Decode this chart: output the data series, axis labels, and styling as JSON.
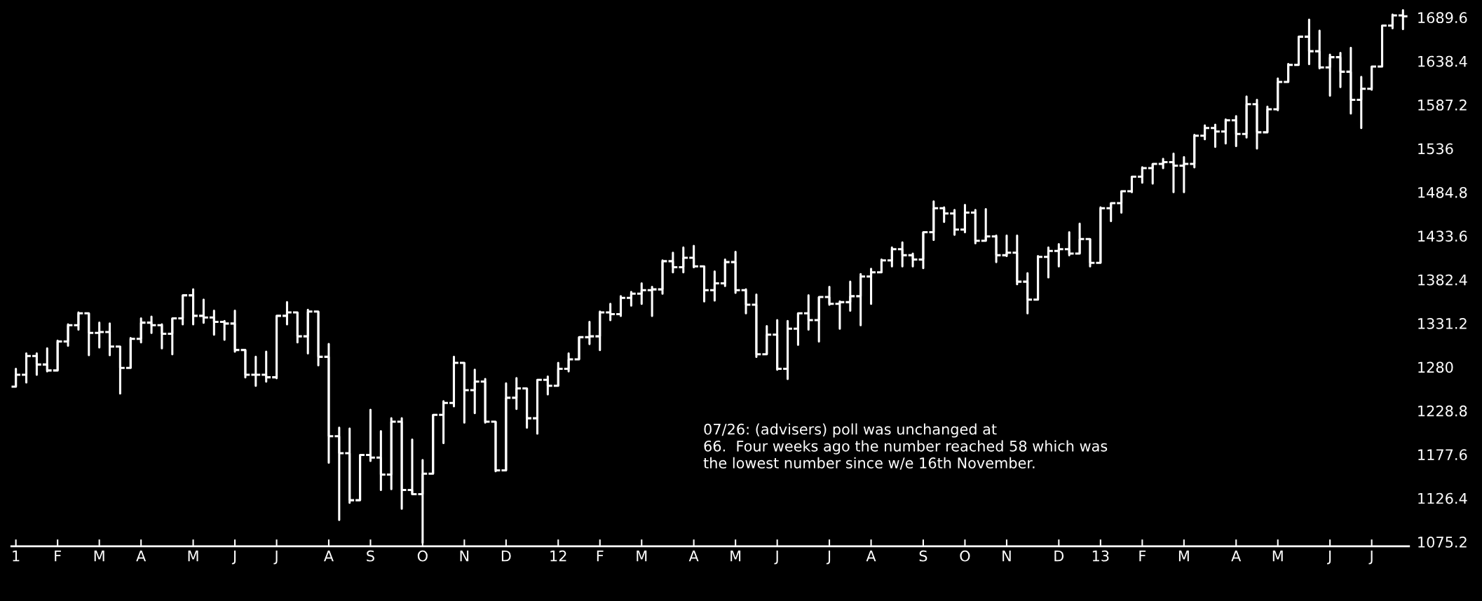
{
  "chart_data": {
    "type": "candlestick",
    "x": [
      "2011-01-07",
      "2011-01-14",
      "2011-01-21",
      "2011-01-28",
      "2011-02-04",
      "2011-02-11",
      "2011-02-18",
      "2011-02-25",
      "2011-03-04",
      "2011-03-11",
      "2011-03-18",
      "2011-03-25",
      "2011-04-01",
      "2011-04-08",
      "2011-04-15",
      "2011-04-22",
      "2011-04-29",
      "2011-05-06",
      "2011-05-13",
      "2011-05-20",
      "2011-05-27",
      "2011-06-03",
      "2011-06-10",
      "2011-06-17",
      "2011-06-24",
      "2011-07-01",
      "2011-07-08",
      "2011-07-15",
      "2011-07-22",
      "2011-07-29",
      "2011-08-05",
      "2011-08-12",
      "2011-08-19",
      "2011-08-26",
      "2011-09-02",
      "2011-09-09",
      "2011-09-16",
      "2011-09-23",
      "2011-09-30",
      "2011-10-07",
      "2011-10-14",
      "2011-10-21",
      "2011-10-28",
      "2011-11-04",
      "2011-11-11",
      "2011-11-18",
      "2011-11-25",
      "2011-12-02",
      "2011-12-09",
      "2011-12-16",
      "2011-12-23",
      "2011-12-30",
      "2012-01-06",
      "2012-01-13",
      "2012-01-20",
      "2012-01-27",
      "2012-02-03",
      "2012-02-10",
      "2012-02-17",
      "2012-02-24",
      "2012-03-02",
      "2012-03-09",
      "2012-03-16",
      "2012-03-23",
      "2012-03-30",
      "2012-04-06",
      "2012-04-13",
      "2012-04-20",
      "2012-04-27",
      "2012-05-04",
      "2012-05-11",
      "2012-05-18",
      "2012-05-25",
      "2012-06-01",
      "2012-06-08",
      "2012-06-15",
      "2012-06-22",
      "2012-06-29",
      "2012-07-06",
      "2012-07-13",
      "2012-07-20",
      "2012-07-27",
      "2012-08-03",
      "2012-08-10",
      "2012-08-17",
      "2012-08-24",
      "2012-08-31",
      "2012-09-07",
      "2012-09-14",
      "2012-09-21",
      "2012-09-28",
      "2012-10-05",
      "2012-10-12",
      "2012-10-19",
      "2012-10-26",
      "2012-11-02",
      "2012-11-09",
      "2012-11-16",
      "2012-11-23",
      "2012-11-30",
      "2012-12-07",
      "2012-12-14",
      "2012-12-21",
      "2012-12-28",
      "2013-01-04",
      "2013-01-11",
      "2013-01-18",
      "2013-01-25",
      "2013-02-01",
      "2013-02-08",
      "2013-02-15",
      "2013-02-22",
      "2013-03-01",
      "2013-03-08",
      "2013-03-15",
      "2013-03-22",
      "2013-03-29",
      "2013-04-05",
      "2013-04-12",
      "2013-04-19",
      "2013-04-26",
      "2013-05-03",
      "2013-05-10",
      "2013-05-17",
      "2013-05-24",
      "2013-05-31",
      "2013-06-07",
      "2013-06-14",
      "2013-06-21",
      "2013-06-28",
      "2013-07-05",
      "2013-07-12",
      "2013-07-19",
      "2013-07-26"
    ],
    "ohlc": [
      [
        1257,
        1278,
        1257,
        1271
      ],
      [
        1271,
        1296,
        1262,
        1293
      ],
      [
        1293,
        1296,
        1271,
        1283
      ],
      [
        1283,
        1302,
        1275,
        1276
      ],
      [
        1276,
        1311,
        1276,
        1310
      ],
      [
        1310,
        1330,
        1305,
        1329
      ],
      [
        1329,
        1344,
        1324,
        1343
      ],
      [
        1343,
        1343,
        1294,
        1320
      ],
      [
        1320,
        1332,
        1303,
        1321
      ],
      [
        1321,
        1331,
        1294,
        1304
      ],
      [
        1304,
        1304,
        1249,
        1279
      ],
      [
        1279,
        1314,
        1279,
        1313
      ],
      [
        1313,
        1337,
        1309,
        1332
      ],
      [
        1332,
        1339,
        1320,
        1329
      ],
      [
        1329,
        1330,
        1302,
        1319
      ],
      [
        1319,
        1337,
        1295,
        1337
      ],
      [
        1337,
        1364,
        1330,
        1364
      ],
      [
        1364,
        1371,
        1330,
        1340
      ],
      [
        1340,
        1359,
        1332,
        1338
      ],
      [
        1338,
        1346,
        1318,
        1333
      ],
      [
        1333,
        1334,
        1312,
        1331
      ],
      [
        1331,
        1346,
        1298,
        1300
      ],
      [
        1300,
        1300,
        1268,
        1271
      ],
      [
        1271,
        1292,
        1258,
        1271
      ],
      [
        1271,
        1298,
        1263,
        1268
      ],
      [
        1268,
        1340,
        1267,
        1340
      ],
      [
        1340,
        1356,
        1330,
        1344
      ],
      [
        1344,
        1344,
        1309,
        1316
      ],
      [
        1316,
        1347,
        1296,
        1345
      ],
      [
        1345,
        1345,
        1282,
        1292
      ],
      [
        1292,
        1307,
        1168,
        1199
      ],
      [
        1199,
        1209,
        1101,
        1179
      ],
      [
        1179,
        1208,
        1121,
        1124
      ],
      [
        1124,
        1177,
        1124,
        1177
      ],
      [
        1177,
        1230,
        1170,
        1174
      ],
      [
        1174,
        1205,
        1136,
        1154
      ],
      [
        1154,
        1220,
        1137,
        1216
      ],
      [
        1216,
        1220,
        1114,
        1136
      ],
      [
        1136,
        1195,
        1131,
        1131
      ],
      [
        1131,
        1171,
        1074,
        1155
      ],
      [
        1155,
        1224,
        1155,
        1224
      ],
      [
        1224,
        1240,
        1191,
        1238
      ],
      [
        1238,
        1292,
        1234,
        1285
      ],
      [
        1285,
        1285,
        1215,
        1253
      ],
      [
        1253,
        1277,
        1226,
        1263
      ],
      [
        1263,
        1266,
        1215,
        1216
      ],
      [
        1216,
        1216,
        1158,
        1159
      ],
      [
        1159,
        1261,
        1159,
        1244
      ],
      [
        1244,
        1267,
        1231,
        1255
      ],
      [
        1255,
        1255,
        1209,
        1220
      ],
      [
        1220,
        1265,
        1202,
        1265
      ],
      [
        1265,
        1269,
        1248,
        1258
      ],
      [
        1258,
        1285,
        1258,
        1278
      ],
      [
        1278,
        1296,
        1275,
        1289
      ],
      [
        1289,
        1315,
        1289,
        1315
      ],
      [
        1315,
        1333,
        1307,
        1316
      ],
      [
        1316,
        1345,
        1300,
        1344
      ],
      [
        1344,
        1354,
        1335,
        1342
      ],
      [
        1342,
        1363,
        1340,
        1361
      ],
      [
        1361,
        1368,
        1352,
        1366
      ],
      [
        1366,
        1378,
        1354,
        1370
      ],
      [
        1370,
        1374,
        1340,
        1371
      ],
      [
        1371,
        1405,
        1366,
        1404
      ],
      [
        1404,
        1414,
        1391,
        1397
      ],
      [
        1397,
        1420,
        1391,
        1408
      ],
      [
        1408,
        1422,
        1397,
        1398
      ],
      [
        1398,
        1398,
        1357,
        1370
      ],
      [
        1370,
        1392,
        1358,
        1378
      ],
      [
        1378,
        1406,
        1375,
        1403
      ],
      [
        1403,
        1415,
        1367,
        1370
      ],
      [
        1370,
        1371,
        1343,
        1353
      ],
      [
        1353,
        1365,
        1292,
        1295
      ],
      [
        1295,
        1328,
        1295,
        1318
      ],
      [
        1318,
        1335,
        1277,
        1278
      ],
      [
        1278,
        1334,
        1266,
        1325
      ],
      [
        1325,
        1343,
        1306,
        1343
      ],
      [
        1343,
        1364,
        1324,
        1335
      ],
      [
        1335,
        1362,
        1310,
        1362
      ],
      [
        1362,
        1374,
        1353,
        1354
      ],
      [
        1354,
        1357,
        1325,
        1356
      ],
      [
        1356,
        1380,
        1346,
        1363
      ],
      [
        1363,
        1389,
        1329,
        1386
      ],
      [
        1386,
        1395,
        1354,
        1391
      ],
      [
        1391,
        1406,
        1391,
        1405
      ],
      [
        1405,
        1420,
        1398,
        1418
      ],
      [
        1418,
        1426,
        1398,
        1411
      ],
      [
        1411,
        1413,
        1398,
        1406
      ],
      [
        1406,
        1438,
        1396,
        1438
      ],
      [
        1438,
        1474,
        1429,
        1466
      ],
      [
        1466,
        1467,
        1450,
        1460
      ],
      [
        1460,
        1464,
        1435,
        1441
      ],
      [
        1441,
        1470,
        1438,
        1461
      ],
      [
        1461,
        1464,
        1425,
        1428
      ],
      [
        1428,
        1465,
        1428,
        1433
      ],
      [
        1433,
        1434,
        1403,
        1411
      ],
      [
        1411,
        1434,
        1410,
        1414
      ],
      [
        1414,
        1434,
        1377,
        1380
      ],
      [
        1380,
        1390,
        1343,
        1359
      ],
      [
        1359,
        1410,
        1359,
        1409
      ],
      [
        1409,
        1420,
        1385,
        1416
      ],
      [
        1416,
        1424,
        1398,
        1418
      ],
      [
        1418,
        1438,
        1411,
        1413
      ],
      [
        1413,
        1448,
        1413,
        1430
      ],
      [
        1430,
        1430,
        1398,
        1402
      ],
      [
        1402,
        1467,
        1402,
        1466
      ],
      [
        1466,
        1472,
        1451,
        1472
      ],
      [
        1472,
        1486,
        1461,
        1486
      ],
      [
        1486,
        1503,
        1485,
        1503
      ],
      [
        1503,
        1514,
        1496,
        1513
      ],
      [
        1513,
        1518,
        1495,
        1518
      ],
      [
        1518,
        1524,
        1513,
        1520
      ],
      [
        1520,
        1530,
        1485,
        1516
      ],
      [
        1516,
        1526,
        1485,
        1518
      ],
      [
        1518,
        1552,
        1514,
        1551
      ],
      [
        1551,
        1563,
        1547,
        1560
      ],
      [
        1560,
        1564,
        1538,
        1556
      ],
      [
        1556,
        1570,
        1542,
        1569
      ],
      [
        1569,
        1574,
        1539,
        1553
      ],
      [
        1553,
        1597,
        1549,
        1588
      ],
      [
        1588,
        1593,
        1536,
        1555
      ],
      [
        1555,
        1585,
        1555,
        1582
      ],
      [
        1582,
        1618,
        1581,
        1614
      ],
      [
        1614,
        1635,
        1614,
        1634
      ],
      [
        1634,
        1667,
        1634,
        1667
      ],
      [
        1667,
        1687,
        1635,
        1650
      ],
      [
        1650,
        1674,
        1630,
        1631
      ],
      [
        1631,
        1646,
        1598,
        1643
      ],
      [
        1643,
        1648,
        1608,
        1626
      ],
      [
        1626,
        1654,
        1577,
        1593
      ],
      [
        1593,
        1620,
        1560,
        1606
      ],
      [
        1606,
        1632,
        1605,
        1632
      ],
      [
        1632,
        1680,
        1632,
        1680
      ],
      [
        1680,
        1693,
        1677,
        1692
      ],
      [
        1692,
        1698,
        1676,
        1691
      ]
    ],
    "color": "#ffffff",
    "xlim": [
      "2011-01-04",
      "2013-07-30"
    ],
    "xticks": [
      {
        "value": "2011-01-07",
        "label": "1"
      },
      {
        "value": "2011-02-04",
        "label": "F"
      },
      {
        "value": "2011-03-04",
        "label": "M"
      },
      {
        "value": "2011-04-01",
        "label": "A"
      },
      {
        "value": "2011-05-06",
        "label": "M"
      },
      {
        "value": "2011-06-03",
        "label": "J"
      },
      {
        "value": "2011-07-01",
        "label": "J"
      },
      {
        "value": "2011-08-05",
        "label": "A"
      },
      {
        "value": "2011-09-02",
        "label": "S"
      },
      {
        "value": "2011-10-07",
        "label": "O"
      },
      {
        "value": "2011-11-04",
        "label": "N"
      },
      {
        "value": "2011-12-02",
        "label": "D"
      },
      {
        "value": "2012-01-06",
        "label": "12"
      },
      {
        "value": "2012-02-03",
        "label": "F"
      },
      {
        "value": "2012-03-02",
        "label": "M"
      },
      {
        "value": "2012-04-06",
        "label": "A"
      },
      {
        "value": "2012-05-04",
        "label": "M"
      },
      {
        "value": "2012-06-01",
        "label": "J"
      },
      {
        "value": "2012-07-06",
        "label": "J"
      },
      {
        "value": "2012-08-03",
        "label": "A"
      },
      {
        "value": "2012-09-07",
        "label": "S"
      },
      {
        "value": "2012-10-05",
        "label": "O"
      },
      {
        "value": "2012-11-02",
        "label": "N"
      },
      {
        "value": "2012-12-07",
        "label": "D"
      },
      {
        "value": "2013-01-04",
        "label": "13"
      },
      {
        "value": "2013-02-01",
        "label": "F"
      },
      {
        "value": "2013-03-01",
        "label": "M"
      },
      {
        "value": "2013-04-05",
        "label": "A"
      },
      {
        "value": "2013-05-03",
        "label": "M"
      },
      {
        "value": "2013-06-07",
        "label": "J"
      },
      {
        "value": "2013-07-05",
        "label": "J"
      }
    ],
    "ylim": [
      1070,
      1710
    ],
    "yticks": [
      1075.2,
      1126.4,
      1177.6,
      1228.8,
      1280,
      1331.2,
      1382.4,
      1433.6,
      1484.8,
      1536,
      1587.2,
      1638.4,
      1689.6
    ],
    "annotations": [
      "07/26: (advisers) poll was unchanged at\n66.  Four weeks ago the number reached 58 which was\nthe lowest number since w/e 16th November."
    ],
    "grid": false,
    "legend": false
  }
}
